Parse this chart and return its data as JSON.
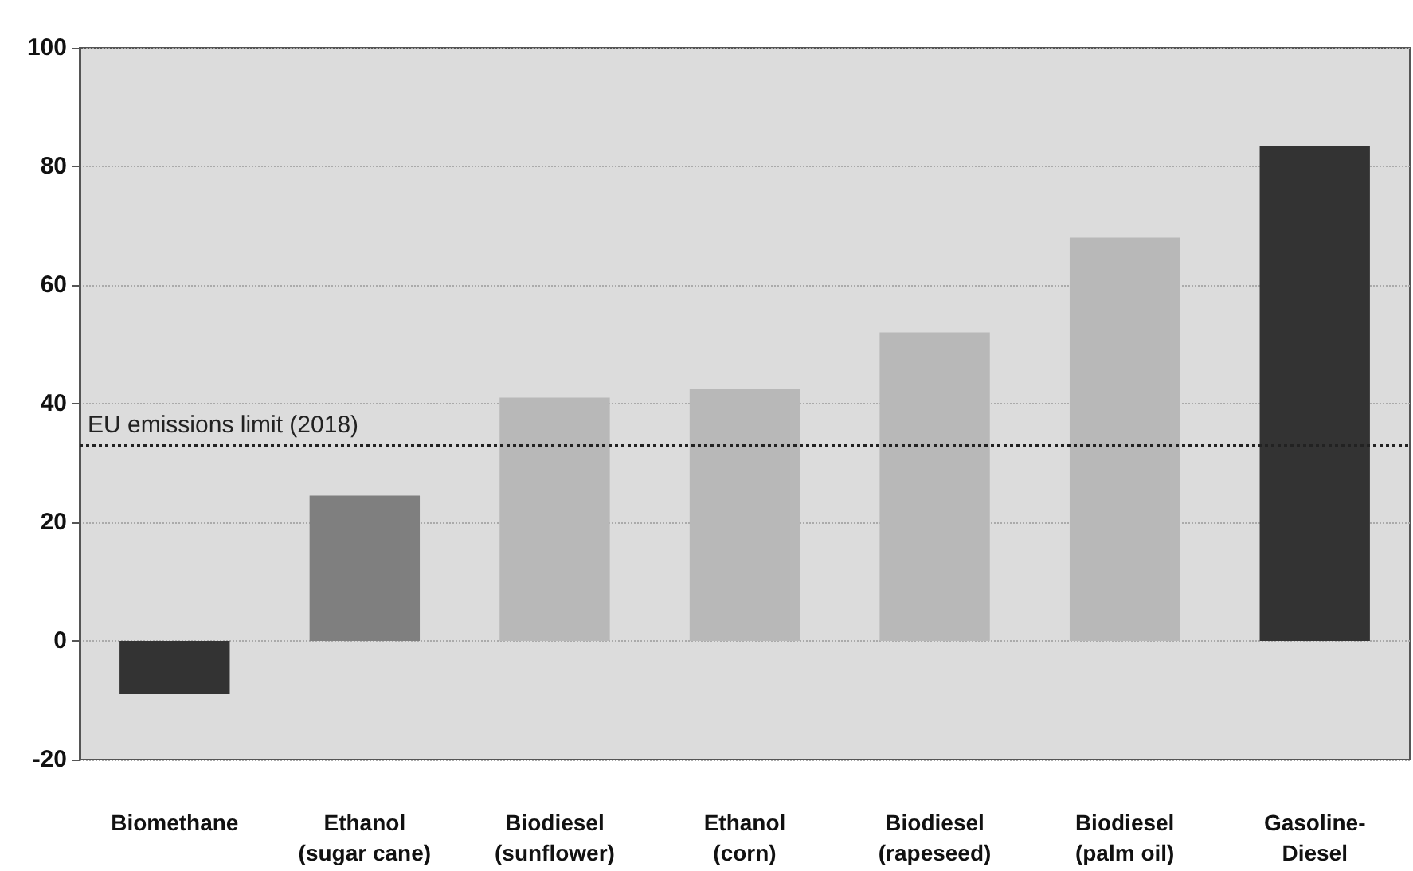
{
  "chart_data": {
    "type": "bar",
    "categories": [
      "Biomethane",
      "Ethanol\n(sugar cane)",
      "Biodiesel\n(sunflower)",
      "Ethanol\n(corn)",
      "Biodiesel\n(rapeseed)",
      "Biodiesel\n(palm oil)",
      "Gasoline-\nDiesel"
    ],
    "values": [
      -9,
      24.5,
      41,
      42.5,
      52,
      68,
      83.5
    ],
    "colors": [
      "#333333",
      "#7f7f7f",
      "#b8b8b8",
      "#b8b8b8",
      "#b8b8b8",
      "#b8b8b8",
      "#333333"
    ],
    "ylim": [
      -20,
      100
    ],
    "yticks": [
      -20,
      0,
      20,
      40,
      60,
      80,
      100
    ],
    "grid": "y",
    "ref_lines": [
      {
        "axis": "y",
        "value": 33,
        "label": "EU emissions limit (2018)",
        "color": "#222222",
        "line_style": "dotted"
      }
    ]
  }
}
